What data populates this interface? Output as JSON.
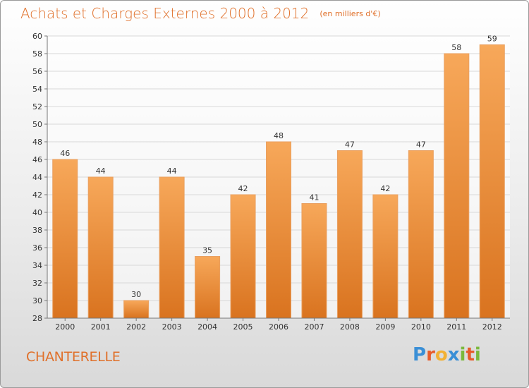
{
  "title": "Achats et Charges Externes 2000 à 2012",
  "unit": "(en milliers d'€)",
  "commune": "CHANTERELLE",
  "logo": {
    "text": "Proxiti",
    "letters": [
      {
        "char": "P",
        "color": "#3a8fd6"
      },
      {
        "char": "r",
        "color": "#e85b2a"
      },
      {
        "char": "o",
        "color": "#f2b134"
      },
      {
        "char": "x",
        "color": "#3a8fd6"
      },
      {
        "char": "i",
        "color": "#7bb93c"
      },
      {
        "char": "t",
        "color": "#e85b2a"
      },
      {
        "char": "i",
        "color": "#7bb93c"
      }
    ]
  },
  "colors": {
    "accent": "#e0702a",
    "bar_top": "#f7a85a",
    "bar_bottom": "#d9731f",
    "grid": "#d8d8d8"
  },
  "chart_data": {
    "type": "bar",
    "categories": [
      "2000",
      "2001",
      "2002",
      "2003",
      "2004",
      "2005",
      "2006",
      "2007",
      "2008",
      "2009",
      "2010",
      "2011",
      "2012"
    ],
    "values": [
      46,
      44,
      30,
      44,
      35,
      42,
      48,
      41,
      47,
      42,
      47,
      58,
      59
    ],
    "ylim": [
      28,
      60
    ],
    "yticks": [
      28,
      30,
      32,
      34,
      36,
      38,
      40,
      42,
      44,
      46,
      48,
      50,
      52,
      54,
      56,
      58,
      60
    ],
    "grid": true,
    "data_labels": true
  }
}
